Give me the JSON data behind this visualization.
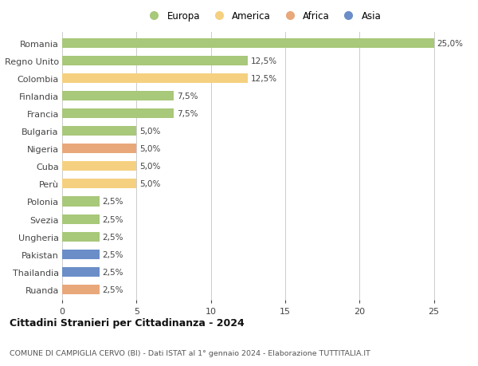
{
  "countries": [
    "Romania",
    "Regno Unito",
    "Colombia",
    "Finlandia",
    "Francia",
    "Bulgaria",
    "Nigeria",
    "Cuba",
    "Perù",
    "Polonia",
    "Svezia",
    "Ungheria",
    "Pakistan",
    "Thailandia",
    "Ruanda"
  ],
  "values": [
    25.0,
    12.5,
    12.5,
    7.5,
    7.5,
    5.0,
    5.0,
    5.0,
    5.0,
    2.5,
    2.5,
    2.5,
    2.5,
    2.5,
    2.5
  ],
  "continents": [
    "Europa",
    "Europa",
    "America",
    "Europa",
    "Europa",
    "Europa",
    "Africa",
    "America",
    "America",
    "Europa",
    "Europa",
    "Europa",
    "Asia",
    "Asia",
    "Africa"
  ],
  "colors": {
    "Europa": "#a8c87a",
    "America": "#f5d080",
    "Africa": "#e8a87a",
    "Asia": "#6b8ec8"
  },
  "xlim": [
    0,
    27
  ],
  "xticks": [
    0,
    5,
    10,
    15,
    20,
    25
  ],
  "title": "Cittadini Stranieri per Cittadinanza - 2024",
  "subtitle": "COMUNE DI CAMPIGLIA CERVO (BI) - Dati ISTAT al 1° gennaio 2024 - Elaborazione TUTTITALIA.IT",
  "bar_height": 0.55,
  "background_color": "#ffffff",
  "grid_color": "#cccccc",
  "label_color": "#444444",
  "value_label_color": "#444444",
  "legend_order": [
    "Europa",
    "America",
    "Africa",
    "Asia"
  ],
  "figsize": [
    6.0,
    4.6
  ],
  "dpi": 100
}
